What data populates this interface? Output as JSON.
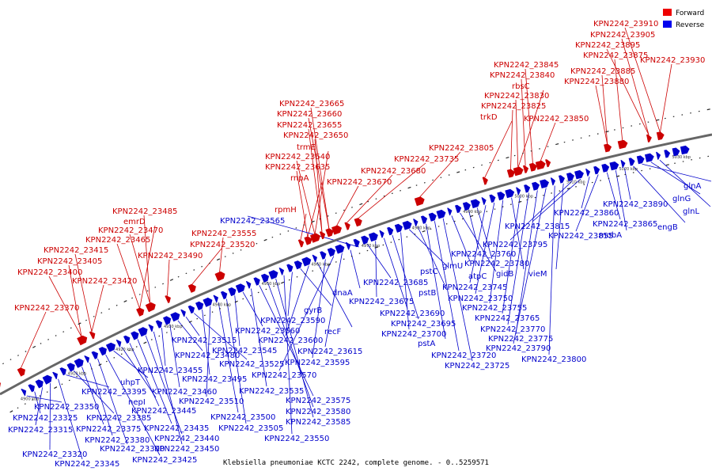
{
  "title": "Klebsiella pneumoniae KCTC 2242, complete genome. - 0..5259571",
  "legend": [
    {
      "label": "Forward",
      "color": "#ee0000"
    },
    {
      "label": "Reverse",
      "color": "#0000ee"
    }
  ],
  "colors": {
    "forward": "#cc0000",
    "reverse": "#0000cc",
    "axis": "#777777"
  },
  "ticks": [
    "4900 kbp",
    "4910 kbp",
    "4920 kbp",
    "4930 kbp",
    "4940 kbp",
    "4950 kbp",
    "4960 kbp",
    "4970 kbp",
    "4980 kbp",
    "4990 kbp",
    "5000 kbp",
    "5010 kbp",
    "5020 kbp",
    "5030 kbp"
  ],
  "forward_labels": [
    "KPN2242_23370",
    "KPN2242_23400",
    "KPN2242_23405",
    "KPN2242_23415",
    "KPN2242_23420",
    "KPN2242_23465",
    "emrD",
    "KPN2242_23470",
    "KPN2242_23485",
    "KPN2242_23490",
    "KPN2242_23520",
    "KPN2242_23555",
    "rpmH",
    "rnpA",
    "KPN2242_23635",
    "KPN2242_23640",
    "trmE",
    "KPN2242_23650",
    "KPN2242_23655",
    "KPN2242_23660",
    "KPN2242_23665",
    "KPN2242_23670",
    "KPN2242_23680",
    "KPN2242_23735",
    "KPN2242_23805",
    "trkD",
    "KPN2242_23825",
    "KPN2242_23830",
    "rbsC",
    "KPN2242_23840",
    "KPN2242_23845",
    "KPN2242_23850",
    "KPN2242_23880",
    "KPN2242_23885",
    "KPN2242_23875",
    "KPN2242_23895",
    "KPN2242_23905",
    "KPN2242_23910",
    "KPN2242_23930"
  ],
  "reverse_labels": [
    "KPN2242_23350",
    "KPN2242_23325",
    "KPN2242_23315",
    "KPN2242_23320",
    "KPN2242_23345",
    "KPN2242_23395",
    "KPN2242_23385",
    "KPN2242_23375",
    "KPN2242_23380",
    "KPN2242_23390",
    "KPN2242_23425",
    "uhpT",
    "nepI",
    "KPN2242_23445",
    "KPN2242_23435",
    "KPN2242_23440",
    "KPN2242_23450",
    "KPN2242_23455",
    "KPN2242_23460",
    "KPN2242_23480",
    "KPN2242_23515",
    "KPN2242_23525",
    "KPN2242_23495",
    "KPN2242_23510",
    "KPN2242_23500",
    "KPN2242_23505",
    "KPN2242_23545",
    "KPN2242_23560",
    "KPN2242_23535",
    "KPN2242_23575",
    "KPN2242_23580",
    "KPN2242_23585",
    "KPN2242_23550",
    "KPN2242_23590",
    "gyrB",
    "KPN2242_23600",
    "recF",
    "KPN2242_23595",
    "KPN2242_23570",
    "KPN2242_23615",
    "dnaA",
    "KPN2242_23565",
    "KPN2242_23685",
    "KPN2242_23675",
    "KPN2242_23690",
    "KPN2242_23695",
    "KPN2242_23700",
    "pstC",
    "pstB",
    "pstA",
    "KPN2242_23720",
    "KPN2242_23725",
    "glmU",
    "atpC",
    "KPN2242_23760",
    "KPN2242_23780",
    "KPN2242_23745",
    "KPN2242_23750",
    "KPN2242_23755",
    "gidB",
    "KPN2242_23765",
    "KPN2242_23770",
    "KPN2242_23775",
    "KPN2242_23790",
    "KPN2242_23800",
    "vieM",
    "KPN2242_23795",
    "KPN2242_23815",
    "KPN2242_23860",
    "KPN2242_23855",
    "KPN2242_23865",
    "mobA",
    "KPN2242_23890",
    "engB",
    "glnA",
    "glnG",
    "glnL"
  ]
}
